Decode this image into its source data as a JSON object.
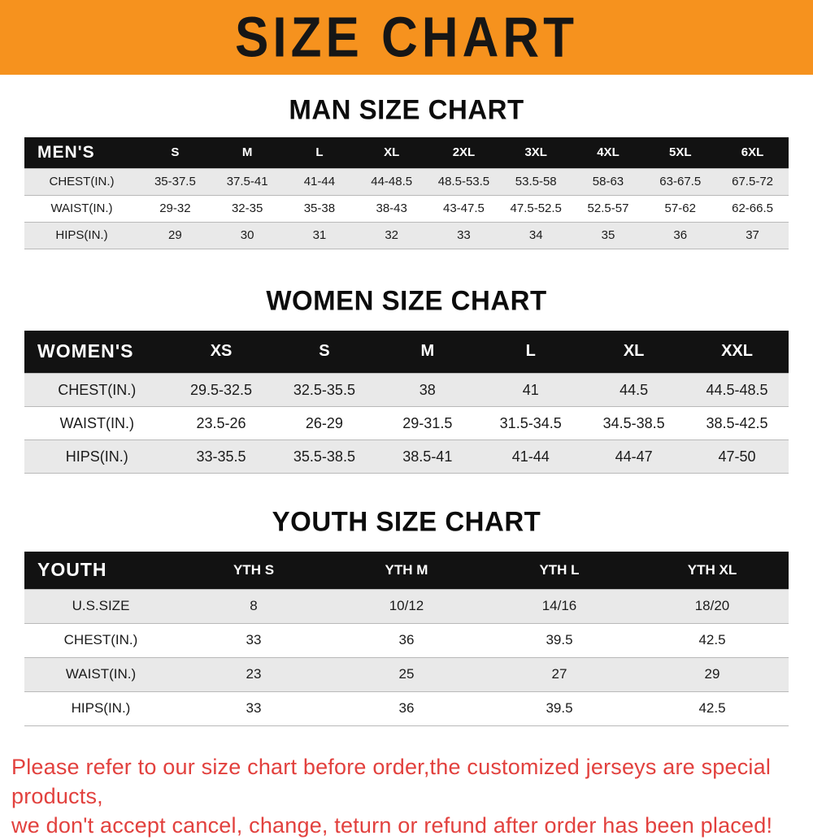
{
  "banner": {
    "title": "SIZE CHART"
  },
  "chart_data": [
    {
      "type": "table",
      "title": "MAN SIZE CHART",
      "columns": [
        "MEN'S",
        "S",
        "M",
        "L",
        "XL",
        "2XL",
        "3XL",
        "4XL",
        "5XL",
        "6XL"
      ],
      "rows": [
        [
          "CHEST(IN.)",
          "35-37.5",
          "37.5-41",
          "41-44",
          "44-48.5",
          "48.5-53.5",
          "53.5-58",
          "58-63",
          "63-67.5",
          "67.5-72"
        ],
        [
          "WAIST(IN.)",
          "29-32",
          "32-35",
          "35-38",
          "38-43",
          "43-47.5",
          "47.5-52.5",
          "52.5-57",
          "57-62",
          "62-66.5"
        ],
        [
          "HIPS(IN.)",
          "29",
          "30",
          "31",
          "32",
          "33",
          "34",
          "35",
          "36",
          "37"
        ]
      ]
    },
    {
      "type": "table",
      "title": "WOMEN SIZE CHART",
      "columns": [
        "WOMEN'S",
        "XS",
        "S",
        "M",
        "L",
        "XL",
        "XXL"
      ],
      "rows": [
        [
          "CHEST(IN.)",
          "29.5-32.5",
          "32.5-35.5",
          "38",
          "41",
          "44.5",
          "44.5-48.5"
        ],
        [
          "WAIST(IN.)",
          "23.5-26",
          "26-29",
          "29-31.5",
          "31.5-34.5",
          "34.5-38.5",
          "38.5-42.5"
        ],
        [
          "HIPS(IN.)",
          "33-35.5",
          "35.5-38.5",
          "38.5-41",
          "41-44",
          "44-47",
          "47-50"
        ]
      ]
    },
    {
      "type": "table",
      "title": "YOUTH SIZE CHART",
      "columns": [
        "YOUTH",
        "YTH S",
        "YTH M",
        "YTH L",
        "YTH XL"
      ],
      "rows": [
        [
          "U.S.SIZE",
          "8",
          "10/12",
          "14/16",
          "18/20"
        ],
        [
          "CHEST(IN.)",
          "33",
          "36",
          "39.5",
          "42.5"
        ],
        [
          "WAIST(IN.)",
          "23",
          "25",
          "27",
          "29"
        ],
        [
          "HIPS(IN.)",
          "33",
          "36",
          "39.5",
          "42.5"
        ]
      ]
    }
  ],
  "footer": {
    "line1": "Please refer to our size chart before order,the customized jerseys are special products,",
    "line2": "we don't accept cancel, change, teturn or refund after order has been placed!"
  },
  "colors": {
    "banner-bg": "#f6921e",
    "banner-text": "#161616",
    "table-header-bg": "#121212",
    "table-header-text": "#ffffff",
    "stripe": "#e9e9e9",
    "footer-text": "#e2413e"
  }
}
